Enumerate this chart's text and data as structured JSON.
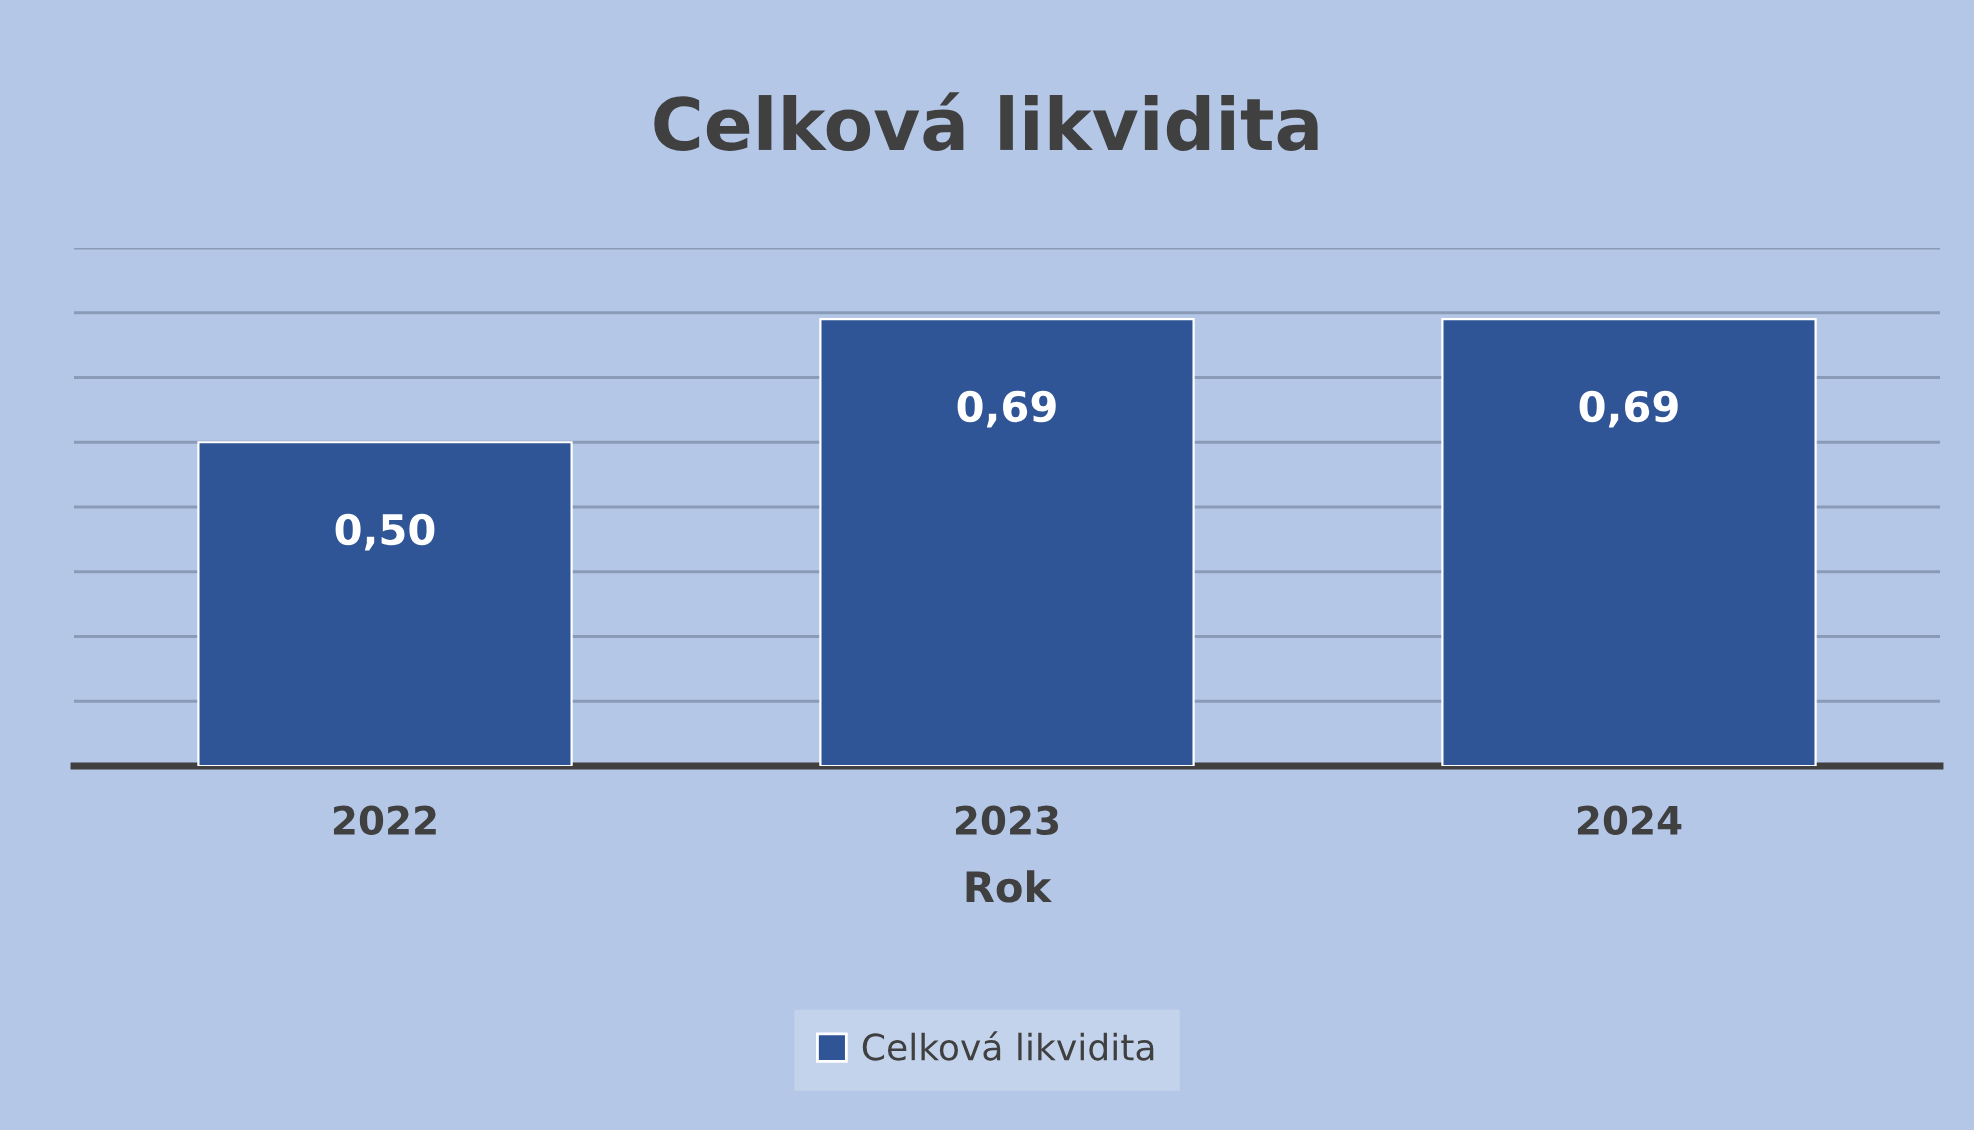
{
  "chart_data": {
    "type": "bar",
    "title": "Celková likvidita",
    "xlabel": "Rok",
    "categories": [
      "2022",
      "2023",
      "2024"
    ],
    "series": [
      {
        "name": "Celková likvidita",
        "color": "#2f5597",
        "values": [
          0.5,
          0.69,
          0.69
        ],
        "value_labels": [
          "0,50",
          "0,69",
          "0,69"
        ]
      }
    ],
    "ylim": [
      0,
      0.8
    ],
    "yticks": [
      {
        "value": 0,
        "label": null
      },
      {
        "value": 0.1,
        "label": null
      },
      {
        "value": 0.2,
        "label": null
      },
      {
        "value": 0.3,
        "label": null
      },
      {
        "value": 0.4,
        "label": null
      },
      {
        "value": 0.5,
        "label": null
      },
      {
        "value": 0.6,
        "label": null
      },
      {
        "value": 0.7,
        "label": null
      },
      {
        "value": 0.8,
        "label": null
      }
    ],
    "grid": "y",
    "legend": "bottom",
    "tick_labels": "x"
  }
}
